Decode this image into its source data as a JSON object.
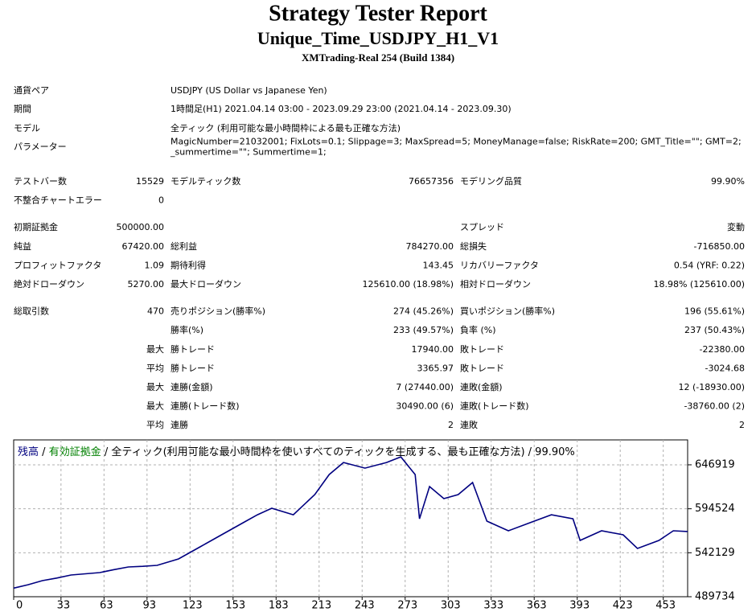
{
  "header": {
    "title": "Strategy Tester Report",
    "subtitle": "Unique_Time_USDJPY_H1_V1",
    "build": "XMTrading-Real 254 (Build 1384)"
  },
  "info": [
    {
      "label": "通貨ペア",
      "value": [
        "USDJPY (US Dollar vs Japanese Yen)"
      ]
    },
    {
      "label": "期間",
      "value": [
        "1時間足(H1) 2021.04.14 03:00 - 2023.09.29 23:00 (2021.04.14 - 2023.09.30)"
      ]
    },
    {
      "label": "モデル",
      "value": [
        "全ティック (利用可能な最小時間枠による最も正確な方法)"
      ]
    },
    {
      "label": "パラメーター",
      "value": [
        "MagicNumber=21032001; FixLots=0.1; Slippage=3; MaxSpread=5; MoneyManage=false; RiskRate=200; GMT_Title=\"\"; GMT=2;",
        "_summertime=\"\"; Summertime=1;"
      ]
    }
  ],
  "stats": [
    [
      [
        "テストバー数",
        "15529",
        "モデルティック数",
        "76657356",
        "モデリング品質",
        "99.90%"
      ],
      [
        "不整合チャートエラー",
        "0",
        null,
        null,
        null,
        null
      ]
    ],
    [
      [
        "初期証拠金",
        "500000.00",
        null,
        null,
        "スプレッド",
        "変動"
      ],
      [
        "純益",
        "67420.00",
        "総利益",
        "784270.00",
        "総損失",
        "-716850.00"
      ],
      [
        "プロフィットファクタ",
        "1.09",
        "期待利得",
        "143.45",
        "リカバリーファクタ",
        "0.54 (YRF: 0.22)"
      ],
      [
        "絶対ドローダウン",
        "5270.00",
        "最大ドローダウン",
        "125610.00 (18.98%)",
        "相対ドローダウン",
        "18.98% (125610.00)"
      ]
    ],
    [
      [
        "総取引数",
        "470",
        "売りポジション(勝率%)",
        "274 (45.26%)",
        "買いポジション(勝率%)",
        "196 (55.61%)"
      ],
      [
        null,
        null,
        "勝率(%)",
        "233 (49.57%)",
        "負率 (%)",
        "237 (50.43%)"
      ],
      [
        null,
        "最大",
        "勝トレード",
        "17940.00",
        "敗トレード",
        "-22380.00"
      ],
      [
        null,
        "平均",
        "勝トレード",
        "3365.97",
        "敗トレード",
        "-3024.68"
      ],
      [
        null,
        "最大",
        "連勝(金額)",
        "7 (27440.00)",
        "連敗(金額)",
        "12 (-18930.00)"
      ],
      [
        null,
        "最大",
        "連勝(トレード数)",
        "30490.00 (6)",
        "連敗(トレード数)",
        "-38760.00 (2)"
      ],
      [
        null,
        "平均",
        "連勝",
        "2",
        "連敗",
        "2"
      ]
    ]
  ],
  "chart_data": {
    "type": "line",
    "separator": "/",
    "equity_label": {
      "text": "有効証拠金",
      "color": "#008000"
    },
    "description": "全ティック(利用可能な最小時間枠を使いすべてのティックを生成する、最も正確な方法) / 99.90%",
    "x": [
      0,
      10,
      20,
      30,
      40,
      50,
      60,
      70,
      80,
      90,
      100,
      115,
      130,
      145,
      160,
      170,
      180,
      195,
      210,
      220,
      230,
      245,
      260,
      270,
      280,
      283,
      290,
      300,
      310,
      320,
      330,
      345,
      360,
      375,
      390,
      395,
      410,
      425,
      435,
      450,
      460,
      470
    ],
    "series": [
      {
        "name": "残高",
        "color": "#000080",
        "values": [
          500000,
          504000,
          508900,
          512000,
          515600,
          517000,
          518500,
          522000,
          525200,
          526000,
          527100,
          534800,
          549100,
          563500,
          577900,
          587400,
          595100,
          587400,
          611400,
          635300,
          649700,
          643000,
          649700,
          656400,
          635300,
          582600,
          621000,
          606600,
          611400,
          625800,
          579800,
          568300,
          577900,
          587400,
          582600,
          556800,
          568300,
          563500,
          547200,
          556800,
          568300,
          567420
        ]
      }
    ],
    "xlim": [
      0,
      470
    ],
    "ylim": [
      489734,
      676600
    ],
    "xticks": [
      0,
      33,
      63,
      93,
      123,
      153,
      183,
      213,
      243,
      273,
      303,
      333,
      363,
      393,
      423,
      453
    ],
    "yticks": [
      489734,
      542129,
      594524,
      646919
    ],
    "grid": true
  }
}
